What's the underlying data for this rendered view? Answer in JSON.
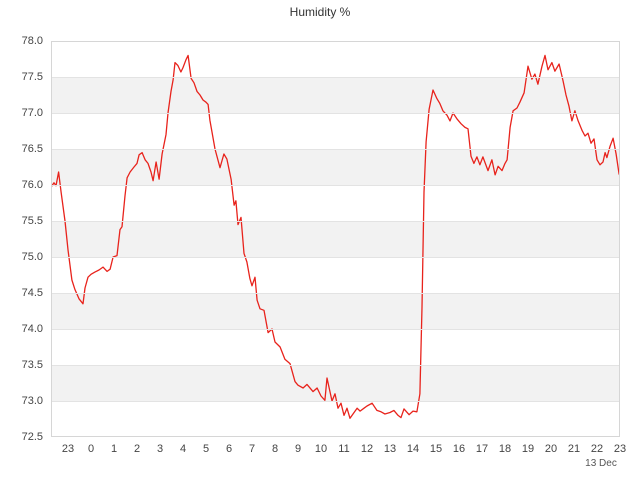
{
  "chart_data": {
    "type": "line",
    "title": "Humidity %",
    "series_name": "Humidity",
    "unit": "%",
    "line_color": "#e8231c",
    "band_color": "#f2f2f2",
    "legend": "none",
    "grid": "horizontal bands every 0.5",
    "ylim": [
      72.5,
      78.0
    ],
    "ytick_step": 0.5,
    "ytick_labels": [
      "78.0",
      "77.5",
      "77.0",
      "76.5",
      "76.0",
      "75.5",
      "75.0",
      "74.5",
      "74.0",
      "73.5",
      "73.0",
      "72.5"
    ],
    "xtick_labels": [
      "23",
      "0",
      "1",
      "2",
      "3",
      "4",
      "5",
      "6",
      "7",
      "8",
      "9",
      "10",
      "11",
      "12",
      "13",
      "14",
      "15",
      "16",
      "17",
      "18",
      "19",
      "20",
      "21",
      "22",
      "23"
    ],
    "x_axis_date_label": "13 Dec",
    "x_unit": "hour of day on 13 Dec (negative = evening of 12 Dec)",
    "x_range": [
      -1.74,
      23.0
    ],
    "points": [
      [
        -1.74,
        75.97
      ],
      [
        -1.61,
        76.03
      ],
      [
        -1.52,
        75.99
      ],
      [
        -1.41,
        76.18
      ],
      [
        -1.3,
        75.9
      ],
      [
        -1.13,
        75.5
      ],
      [
        -1.0,
        75.1
      ],
      [
        -0.83,
        74.68
      ],
      [
        -0.7,
        74.55
      ],
      [
        -0.52,
        74.42
      ],
      [
        -0.35,
        74.35
      ],
      [
        -0.26,
        74.57
      ],
      [
        -0.13,
        74.72
      ],
      [
        0.0,
        74.76
      ],
      [
        0.17,
        74.79
      ],
      [
        0.35,
        74.82
      ],
      [
        0.52,
        74.86
      ],
      [
        0.7,
        74.8
      ],
      [
        0.83,
        74.83
      ],
      [
        0.96,
        75.0
      ],
      [
        1.13,
        75.02
      ],
      [
        1.26,
        75.38
      ],
      [
        1.35,
        75.42
      ],
      [
        1.48,
        75.85
      ],
      [
        1.57,
        76.1
      ],
      [
        1.7,
        76.18
      ],
      [
        1.87,
        76.25
      ],
      [
        2.0,
        76.3
      ],
      [
        2.09,
        76.42
      ],
      [
        2.22,
        76.45
      ],
      [
        2.35,
        76.35
      ],
      [
        2.48,
        76.3
      ],
      [
        2.61,
        76.18
      ],
      [
        2.7,
        76.06
      ],
      [
        2.83,
        76.32
      ],
      [
        2.96,
        76.08
      ],
      [
        3.09,
        76.43
      ],
      [
        3.26,
        76.7
      ],
      [
        3.35,
        77.0
      ],
      [
        3.48,
        77.3
      ],
      [
        3.57,
        77.46
      ],
      [
        3.65,
        77.7
      ],
      [
        3.78,
        77.66
      ],
      [
        3.91,
        77.57
      ],
      [
        4.0,
        77.63
      ],
      [
        4.13,
        77.74
      ],
      [
        4.22,
        77.8
      ],
      [
        4.35,
        77.48
      ],
      [
        4.48,
        77.42
      ],
      [
        4.61,
        77.3
      ],
      [
        4.74,
        77.25
      ],
      [
        4.87,
        77.18
      ],
      [
        5.0,
        77.15
      ],
      [
        5.09,
        77.12
      ],
      [
        5.17,
        76.9
      ],
      [
        5.39,
        76.5
      ],
      [
        5.61,
        76.24
      ],
      [
        5.78,
        76.43
      ],
      [
        5.91,
        76.36
      ],
      [
        6.09,
        76.08
      ],
      [
        6.22,
        75.72
      ],
      [
        6.3,
        75.78
      ],
      [
        6.39,
        75.45
      ],
      [
        6.52,
        75.55
      ],
      [
        6.65,
        75.05
      ],
      [
        6.78,
        74.93
      ],
      [
        6.91,
        74.7
      ],
      [
        7.0,
        74.6
      ],
      [
        7.13,
        74.72
      ],
      [
        7.22,
        74.4
      ],
      [
        7.35,
        74.28
      ],
      [
        7.52,
        74.26
      ],
      [
        7.7,
        73.95
      ],
      [
        7.87,
        74.0
      ],
      [
        8.0,
        73.82
      ],
      [
        8.22,
        73.75
      ],
      [
        8.43,
        73.58
      ],
      [
        8.65,
        73.52
      ],
      [
        8.87,
        73.27
      ],
      [
        9.0,
        73.22
      ],
      [
        9.22,
        73.18
      ],
      [
        9.39,
        73.23
      ],
      [
        9.65,
        73.13
      ],
      [
        9.83,
        73.18
      ],
      [
        10.0,
        73.07
      ],
      [
        10.17,
        73.01
      ],
      [
        10.26,
        73.32
      ],
      [
        10.48,
        73.0
      ],
      [
        10.61,
        73.1
      ],
      [
        10.74,
        72.9
      ],
      [
        10.87,
        72.97
      ],
      [
        11.0,
        72.8
      ],
      [
        11.13,
        72.9
      ],
      [
        11.26,
        72.76
      ],
      [
        11.39,
        72.82
      ],
      [
        11.57,
        72.9
      ],
      [
        11.7,
        72.86
      ],
      [
        11.87,
        72.9
      ],
      [
        12.0,
        72.93
      ],
      [
        12.22,
        72.97
      ],
      [
        12.43,
        72.87
      ],
      [
        12.61,
        72.85
      ],
      [
        12.78,
        72.82
      ],
      [
        13.0,
        72.84
      ],
      [
        13.17,
        72.87
      ],
      [
        13.35,
        72.8
      ],
      [
        13.48,
        72.77
      ],
      [
        13.61,
        72.89
      ],
      [
        13.83,
        72.81
      ],
      [
        14.0,
        72.86
      ],
      [
        14.17,
        72.85
      ],
      [
        14.3,
        73.1
      ],
      [
        14.39,
        74.3
      ],
      [
        14.48,
        75.9
      ],
      [
        14.57,
        76.6
      ],
      [
        14.7,
        77.05
      ],
      [
        14.87,
        77.32
      ],
      [
        15.04,
        77.2
      ],
      [
        15.17,
        77.13
      ],
      [
        15.3,
        77.03
      ],
      [
        15.48,
        76.97
      ],
      [
        15.61,
        76.89
      ],
      [
        15.74,
        77.0
      ],
      [
        15.91,
        76.92
      ],
      [
        16.09,
        76.85
      ],
      [
        16.26,
        76.8
      ],
      [
        16.39,
        76.78
      ],
      [
        16.52,
        76.4
      ],
      [
        16.65,
        76.3
      ],
      [
        16.78,
        76.39
      ],
      [
        16.91,
        76.28
      ],
      [
        17.04,
        76.39
      ],
      [
        17.26,
        76.2
      ],
      [
        17.43,
        76.35
      ],
      [
        17.57,
        76.14
      ],
      [
        17.7,
        76.26
      ],
      [
        17.87,
        76.2
      ],
      [
        18.0,
        76.3
      ],
      [
        18.09,
        76.35
      ],
      [
        18.22,
        76.8
      ],
      [
        18.35,
        77.03
      ],
      [
        18.52,
        77.07
      ],
      [
        18.65,
        77.15
      ],
      [
        18.83,
        77.28
      ],
      [
        19.0,
        77.65
      ],
      [
        19.17,
        77.47
      ],
      [
        19.3,
        77.54
      ],
      [
        19.43,
        77.4
      ],
      [
        19.61,
        77.65
      ],
      [
        19.74,
        77.8
      ],
      [
        19.87,
        77.6
      ],
      [
        20.04,
        77.7
      ],
      [
        20.17,
        77.58
      ],
      [
        20.35,
        77.68
      ],
      [
        20.52,
        77.45
      ],
      [
        20.65,
        77.25
      ],
      [
        20.78,
        77.1
      ],
      [
        20.91,
        76.89
      ],
      [
        21.04,
        77.03
      ],
      [
        21.17,
        76.9
      ],
      [
        21.35,
        76.76
      ],
      [
        21.48,
        76.68
      ],
      [
        21.61,
        76.72
      ],
      [
        21.74,
        76.58
      ],
      [
        21.87,
        76.64
      ],
      [
        22.0,
        76.35
      ],
      [
        22.13,
        76.28
      ],
      [
        22.26,
        76.32
      ],
      [
        22.35,
        76.45
      ],
      [
        22.43,
        76.38
      ],
      [
        22.57,
        76.54
      ],
      [
        22.7,
        76.65
      ],
      [
        22.83,
        76.43
      ],
      [
        22.96,
        76.15
      ]
    ]
  }
}
